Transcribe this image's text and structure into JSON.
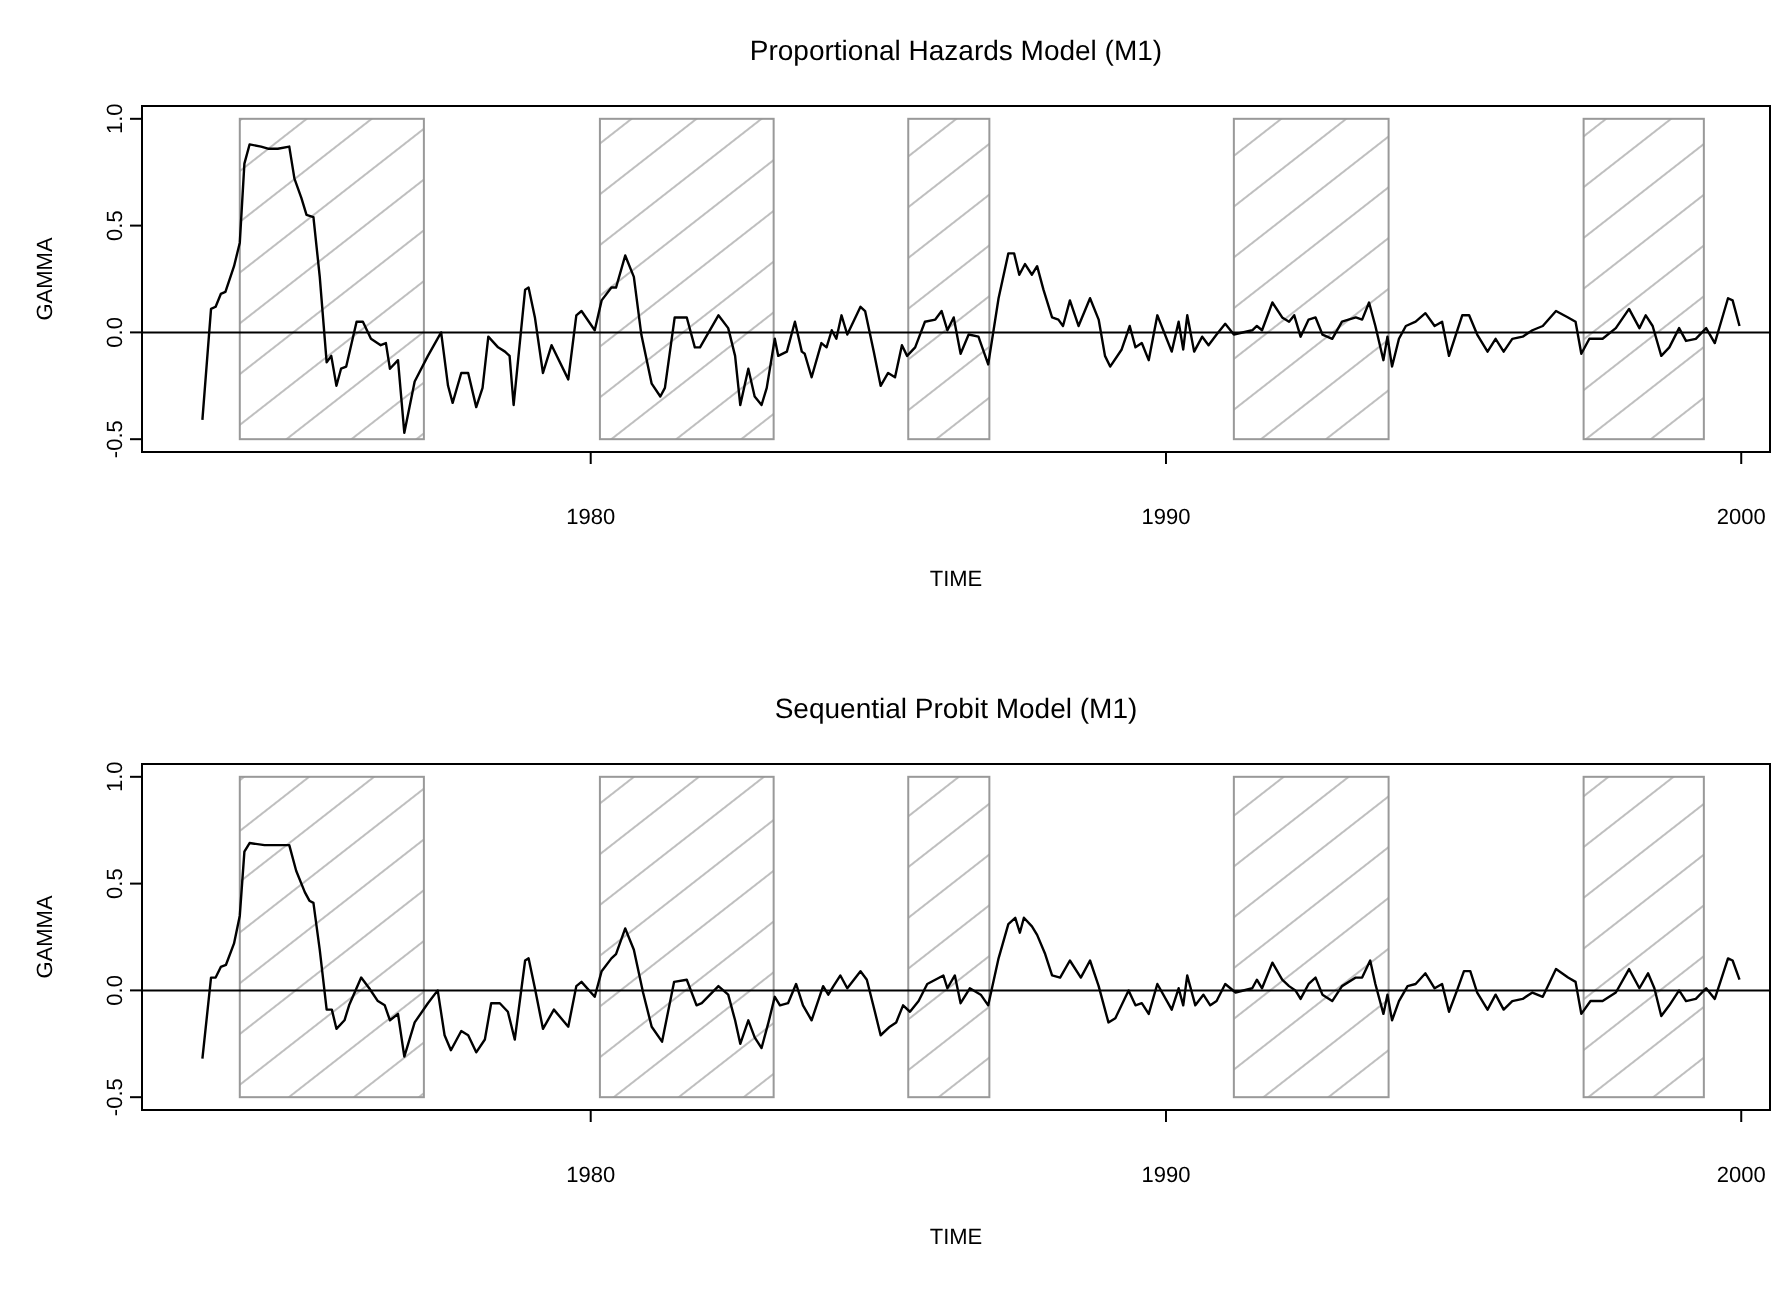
{
  "chart_data": [
    {
      "type": "line",
      "title": "Proportional Hazards Model (M1)",
      "xlabel": "TIME",
      "ylabel": "GAMMA",
      "xlim": [
        1972.2,
        2000.5
      ],
      "ylim": [
        -0.56,
        1.06
      ],
      "xticks": [
        1980,
        1990,
        2000
      ],
      "yticks": [
        {
          "value": -0.5,
          "label": "-0.5"
        },
        {
          "value": 0,
          "label": "0.0"
        },
        {
          "value": 0.5,
          "label": "0.5"
        },
        {
          "value": 1,
          "label": "1.0"
        }
      ],
      "ref_lines": [
        {
          "axis": "y",
          "value": 0,
          "color": "#000000"
        }
      ],
      "bands": [
        {
          "axis": "x",
          "from": 1973.9,
          "to": 1977.1,
          "color": "#999999"
        },
        {
          "axis": "x",
          "from": 1980.16,
          "to": 1983.18,
          "color": "#999999"
        },
        {
          "axis": "x",
          "from": 1985.52,
          "to": 1986.93,
          "color": "#999999"
        },
        {
          "axis": "x",
          "from": 1991.18,
          "to": 1993.87,
          "color": "#999999"
        },
        {
          "axis": "x",
          "from": 1997.26,
          "to": 1999.35,
          "color": "#999999"
        }
      ],
      "series": [
        {
          "color": "#000000",
          "x": [
            1973.25,
            1973.4,
            1973.48,
            1973.57,
            1973.65,
            1973.8,
            1973.9,
            1973.98,
            1974.07,
            1974.27,
            1974.39,
            1974.56,
            1974.76,
            1974.85,
            1974.97,
            1975.06,
            1975.18,
            1975.29,
            1975.41,
            1975.49,
            1975.58,
            1975.66,
            1975.75,
            1975.93,
            1976.04,
            1976.18,
            1976.35,
            1976.44,
            1976.51,
            1976.65,
            1976.76,
            1976.94,
            1977.17,
            1977.4,
            1977.52,
            1977.6,
            1977.75,
            1977.87,
            1978.01,
            1978.12,
            1978.22,
            1978.39,
            1978.51,
            1978.59,
            1978.66,
            1978.86,
            1978.92,
            1979.03,
            1979.17,
            1979.32,
            1979.61,
            1979.75,
            1979.84,
            1980.07,
            1980.19,
            1980.36,
            1980.44,
            1980.6,
            1980.75,
            1980.88,
            1981.06,
            1981.21,
            1981.29,
            1981.46,
            1981.67,
            1981.81,
            1981.9,
            1982.22,
            1982.39,
            1982.51,
            1982.6,
            1982.74,
            1982.85,
            1982.97,
            1983.06,
            1983.2,
            1983.26,
            1983.41,
            1983.55,
            1983.67,
            1983.72,
            1983.84,
            1984.01,
            1984.1,
            1984.19,
            1984.27,
            1984.36,
            1984.46,
            1984.69,
            1984.77,
            1984.92,
            1985.04,
            1985.17,
            1985.29,
            1985.41,
            1985.5,
            1985.64,
            1985.81,
            1985.99,
            1986.1,
            1986.2,
            1986.31,
            1986.43,
            1986.57,
            1986.74,
            1986.91,
            1987.09,
            1987.26,
            1987.36,
            1987.45,
            1987.55,
            1987.67,
            1987.76,
            1987.87,
            1988.02,
            1988.13,
            1988.21,
            1988.33,
            1988.48,
            1988.68,
            1988.83,
            1988.94,
            1989.03,
            1989.23,
            1989.37,
            1989.47,
            1989.58,
            1989.7,
            1989.85,
            1990.1,
            1990.22,
            1990.3,
            1990.37,
            1990.49,
            1990.63,
            1990.74,
            1990.88,
            1991.03,
            1991.18,
            1991.5,
            1991.58,
            1991.67,
            1991.85,
            1992.02,
            1992.14,
            1992.23,
            1992.34,
            1992.48,
            1992.6,
            1992.72,
            1992.89,
            1993.06,
            1993.3,
            1993.41,
            1993.53,
            1993.64,
            1993.78,
            1993.85,
            1993.93,
            1994.05,
            1994.17,
            1994.34,
            1994.51,
            1994.67,
            1994.8,
            1994.92,
            1995.04,
            1995.15,
            1995.27,
            1995.41,
            1995.59,
            1995.73,
            1995.87,
            1996.02,
            1996.2,
            1996.37,
            1996.55,
            1996.78,
            1996.99,
            1997.12,
            1997.22,
            1997.36,
            1997.59,
            1997.82,
            1998.05,
            1998.23,
            1998.34,
            1998.46,
            1998.61,
            1998.75,
            1998.92,
            1999.04,
            1999.21,
            1999.39,
            1999.54,
            1999.65,
            1999.77,
            1999.85,
            1999.97
          ],
          "values": [
            -0.41,
            0.11,
            0.12,
            0.18,
            0.19,
            0.31,
            0.42,
            0.79,
            0.88,
            0.87,
            0.86,
            0.86,
            0.87,
            0.72,
            0.63,
            0.55,
            0.54,
            0.26,
            -0.14,
            -0.11,
            -0.25,
            -0.17,
            -0.16,
            0.05,
            0.05,
            -0.03,
            -0.06,
            -0.05,
            -0.17,
            -0.13,
            -0.47,
            -0.23,
            -0.11,
            0,
            -0.25,
            -0.33,
            -0.19,
            -0.19,
            -0.35,
            -0.26,
            -0.02,
            -0.07,
            -0.09,
            -0.11,
            -0.34,
            0.2,
            0.21,
            0.07,
            -0.19,
            -0.06,
            -0.22,
            0.08,
            0.1,
            0.01,
            0.15,
            0.21,
            0.21,
            0.36,
            0.26,
            -0.01,
            -0.24,
            -0.3,
            -0.26,
            0.07,
            0.07,
            -0.07,
            -0.07,
            0.08,
            0.02,
            -0.11,
            -0.34,
            -0.17,
            -0.3,
            -0.34,
            -0.26,
            -0.03,
            -0.11,
            -0.09,
            0.05,
            -0.09,
            -0.1,
            -0.21,
            -0.05,
            -0.07,
            0.01,
            -0.03,
            0.08,
            -0.01,
            0.12,
            0.1,
            -0.09,
            -0.25,
            -0.19,
            -0.21,
            -0.06,
            -0.11,
            -0.07,
            0.05,
            0.06,
            0.1,
            0.01,
            0.07,
            -0.1,
            -0.01,
            -0.02,
            -0.15,
            0.16,
            0.37,
            0.37,
            0.27,
            0.32,
            0.27,
            0.31,
            0.2,
            0.07,
            0.06,
            0.03,
            0.15,
            0.03,
            0.16,
            0.06,
            -0.11,
            -0.16,
            -0.08,
            0.03,
            -0.07,
            -0.05,
            -0.13,
            0.08,
            -0.09,
            0.05,
            -0.08,
            0.08,
            -0.09,
            -0.02,
            -0.06,
            -0.01,
            0.04,
            -0.01,
            0.01,
            0.03,
            0.01,
            0.14,
            0.07,
            0.05,
            0.08,
            -0.02,
            0.06,
            0.07,
            -0.01,
            -0.03,
            0.05,
            0.07,
            0.06,
            0.14,
            0.03,
            -0.13,
            -0.02,
            -0.16,
            -0.03,
            0.03,
            0.05,
            0.09,
            0.03,
            0.05,
            -0.11,
            -0.01,
            0.08,
            0.08,
            -0.01,
            -0.09,
            -0.03,
            -0.09,
            -0.03,
            -0.02,
            0.01,
            0.03,
            0.1,
            0.07,
            0.05,
            -0.1,
            -0.03,
            -0.03,
            0.02,
            0.11,
            0.02,
            0.08,
            0.03,
            -0.11,
            -0.07,
            0.02,
            -0.04,
            -0.03,
            0.02,
            -0.05,
            0.05,
            0.16,
            0.15,
            0.03
          ]
        }
      ]
    },
    {
      "type": "line",
      "title": "Sequential Probit Model (M1)",
      "xlabel": "TIME",
      "ylabel": "GAMMA",
      "xlim": [
        1972.2,
        2000.5
      ],
      "ylim": [
        -0.56,
        1.06
      ],
      "xticks": [
        1980,
        1990,
        2000
      ],
      "yticks": [
        {
          "value": -0.5,
          "label": "-0.5"
        },
        {
          "value": 0,
          "label": "0.0"
        },
        {
          "value": 0.5,
          "label": "0.5"
        },
        {
          "value": 1,
          "label": "1.0"
        }
      ],
      "ref_lines": [
        {
          "axis": "y",
          "value": 0,
          "color": "#000000"
        }
      ],
      "bands": [
        {
          "axis": "x",
          "from": 1973.9,
          "to": 1977.1,
          "color": "#999999"
        },
        {
          "axis": "x",
          "from": 1980.16,
          "to": 1983.18,
          "color": "#999999"
        },
        {
          "axis": "x",
          "from": 1985.52,
          "to": 1986.93,
          "color": "#999999"
        },
        {
          "axis": "x",
          "from": 1991.18,
          "to": 1993.87,
          "color": "#999999"
        },
        {
          "axis": "x",
          "from": 1997.26,
          "to": 1999.35,
          "color": "#999999"
        }
      ],
      "series": [
        {
          "color": "#000000",
          "x": [
            1973.25,
            1973.4,
            1973.48,
            1973.57,
            1973.66,
            1973.8,
            1973.9,
            1973.98,
            1974.07,
            1974.33,
            1974.56,
            1974.76,
            1974.88,
            1975.03,
            1975.11,
            1975.18,
            1975.29,
            1975.41,
            1975.5,
            1975.58,
            1975.72,
            1975.8,
            1976.01,
            1976.15,
            1976.3,
            1976.42,
            1976.51,
            1976.65,
            1976.76,
            1976.94,
            1977.17,
            1977.34,
            1977.46,
            1977.57,
            1977.75,
            1977.87,
            1978.01,
            1978.16,
            1978.27,
            1978.42,
            1978.56,
            1978.68,
            1978.86,
            1978.92,
            1979.03,
            1979.17,
            1979.36,
            1979.61,
            1979.75,
            1979.84,
            1980.07,
            1980.19,
            1980.36,
            1980.44,
            1980.6,
            1980.75,
            1980.91,
            1981.06,
            1981.24,
            1981.45,
            1981.67,
            1981.84,
            1981.93,
            1982.22,
            1982.39,
            1982.51,
            1982.6,
            1982.74,
            1982.85,
            1982.97,
            1983.09,
            1983.2,
            1983.29,
            1983.43,
            1983.57,
            1983.69,
            1983.84,
            1984.04,
            1984.13,
            1984.22,
            1984.34,
            1984.46,
            1984.69,
            1984.8,
            1984.94,
            1985.04,
            1985.2,
            1985.31,
            1985.43,
            1985.55,
            1985.7,
            1985.85,
            1985.99,
            1986.13,
            1986.2,
            1986.33,
            1986.43,
            1986.59,
            1986.78,
            1986.91,
            1987.09,
            1987.26,
            1987.38,
            1987.46,
            1987.53,
            1987.67,
            1987.76,
            1987.9,
            1988.02,
            1988.16,
            1988.33,
            1988.52,
            1988.68,
            1988.83,
            1989,
            1989.12,
            1989.35,
            1989.47,
            1989.58,
            1989.7,
            1989.85,
            1990.1,
            1990.22,
            1990.3,
            1990.37,
            1990.51,
            1990.65,
            1990.77,
            1990.88,
            1991.03,
            1991.21,
            1991.5,
            1991.58,
            1991.67,
            1991.85,
            1992.02,
            1992.14,
            1992.25,
            1992.34,
            1992.48,
            1992.6,
            1992.72,
            1992.89,
            1993.06,
            1993.3,
            1993.41,
            1993.55,
            1993.64,
            1993.78,
            1993.85,
            1993.93,
            1994.05,
            1994.2,
            1994.34,
            1994.51,
            1994.67,
            1994.8,
            1994.92,
            1995.06,
            1995.18,
            1995.29,
            1995.41,
            1995.59,
            1995.73,
            1995.87,
            1996.02,
            1996.2,
            1996.37,
            1996.55,
            1996.78,
            1996.99,
            1997.12,
            1997.22,
            1997.38,
            1997.59,
            1997.82,
            1998.05,
            1998.23,
            1998.38,
            1998.49,
            1998.61,
            1998.75,
            1998.92,
            1999.04,
            1999.21,
            1999.39,
            1999.54,
            1999.65,
            1999.77,
            1999.85,
            1999.97
          ],
          "values": [
            -0.32,
            0.06,
            0.06,
            0.11,
            0.12,
            0.22,
            0.35,
            0.65,
            0.69,
            0.68,
            0.68,
            0.68,
            0.56,
            0.46,
            0.42,
            0.41,
            0.19,
            -0.09,
            -0.09,
            -0.18,
            -0.14,
            -0.07,
            0.06,
            0.01,
            -0.05,
            -0.07,
            -0.14,
            -0.11,
            -0.31,
            -0.15,
            -0.06,
            0,
            -0.21,
            -0.28,
            -0.19,
            -0.21,
            -0.29,
            -0.23,
            -0.06,
            -0.06,
            -0.1,
            -0.23,
            0.14,
            0.15,
            0.01,
            -0.18,
            -0.09,
            -0.17,
            0.02,
            0.04,
            -0.03,
            0.09,
            0.15,
            0.17,
            0.29,
            0.19,
            -0.01,
            -0.17,
            -0.24,
            0.04,
            0.05,
            -0.07,
            -0.06,
            0.02,
            -0.02,
            -0.14,
            -0.25,
            -0.14,
            -0.22,
            -0.27,
            -0.15,
            -0.03,
            -0.07,
            -0.06,
            0.03,
            -0.07,
            -0.14,
            0.02,
            -0.02,
            0.02,
            0.07,
            0.01,
            0.09,
            0.05,
            -0.1,
            -0.21,
            -0.17,
            -0.15,
            -0.07,
            -0.1,
            -0.05,
            0.03,
            0.05,
            0.07,
            0.01,
            0.07,
            -0.06,
            0.01,
            -0.02,
            -0.07,
            0.15,
            0.31,
            0.34,
            0.27,
            0.34,
            0.3,
            0.26,
            0.17,
            0.07,
            0.06,
            0.14,
            0.06,
            0.14,
            0.02,
            -0.15,
            -0.13,
            0,
            -0.07,
            -0.06,
            -0.11,
            0.03,
            -0.09,
            0.01,
            -0.07,
            0.07,
            -0.07,
            -0.02,
            -0.07,
            -0.05,
            0.03,
            -0.01,
            0.01,
            0.05,
            0.01,
            0.13,
            0.05,
            0.02,
            0,
            -0.04,
            0.03,
            0.06,
            -0.02,
            -0.05,
            0.02,
            0.06,
            0.06,
            0.14,
            0.03,
            -0.11,
            -0.02,
            -0.14,
            -0.05,
            0.02,
            0.03,
            0.08,
            0.01,
            0.03,
            -0.1,
            0,
            0.09,
            0.09,
            -0.01,
            -0.09,
            -0.02,
            -0.09,
            -0.05,
            -0.04,
            -0.01,
            -0.03,
            0.1,
            0.06,
            0.04,
            -0.11,
            -0.05,
            -0.05,
            -0.01,
            0.1,
            0.01,
            0.08,
            0.01,
            -0.12,
            -0.07,
            0,
            -0.05,
            -0.04,
            0.01,
            -0.04,
            0.05,
            0.15,
            0.14,
            0.05
          ]
        }
      ]
    }
  ]
}
